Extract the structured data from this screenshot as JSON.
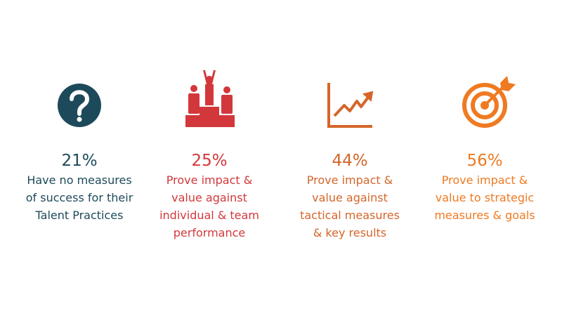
{
  "items": [
    {
      "percent": "21%",
      "lines": [
        "Have no measures",
        "of success for their",
        "Talent Practices"
      ]
    },
    {
      "percent": "25%",
      "lines": [
        "Prove impact &",
        "value against",
        "individual & team",
        "performance"
      ]
    },
    {
      "percent": "44%",
      "lines": [
        "Prove impact &",
        "value against",
        "tactical measures",
        "& key results"
      ]
    },
    {
      "percent": "56%",
      "lines": [
        "Prove impact &",
        "value to strategic",
        "measures & goals"
      ]
    }
  ]
}
